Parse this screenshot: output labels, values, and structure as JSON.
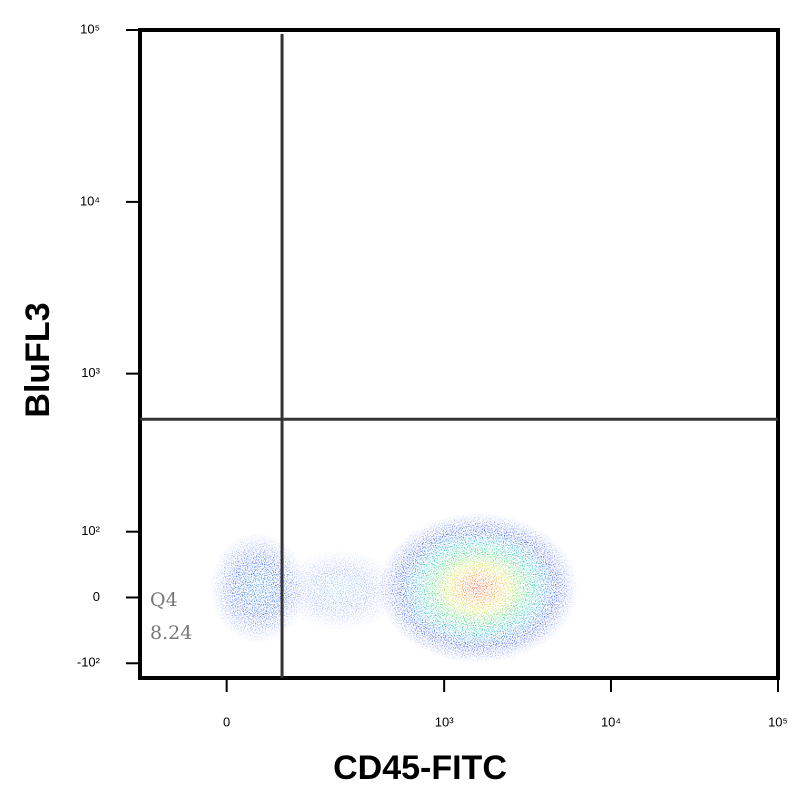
{
  "chart_data": {
    "type": "flow-density",
    "x_label": "CD45-FITC",
    "y_label": "BluFL3",
    "scale": "biexponential",
    "xlim": [
      -150,
      100000
    ],
    "ylim": [
      -130,
      100000
    ],
    "xticks": [
      0,
      {
        "value": 1000,
        "label": "10³"
      },
      {
        "value": 10000,
        "label": "10⁴"
      },
      {
        "value": 100000,
        "label": "10⁵"
      }
    ],
    "yticks": [
      {
        "value": -100,
        "label": "-10²"
      },
      0,
      {
        "value": 100,
        "label": "10²"
      },
      {
        "value": 1000,
        "label": "10³"
      },
      {
        "value": 10000,
        "label": "10⁴"
      },
      {
        "value": 100000,
        "label": "10⁵"
      }
    ],
    "gate": {
      "x": 84,
      "y": 540,
      "color": "#333333"
    },
    "quadrant": {
      "name": "Q4",
      "percent": "8.24"
    }
  }
}
